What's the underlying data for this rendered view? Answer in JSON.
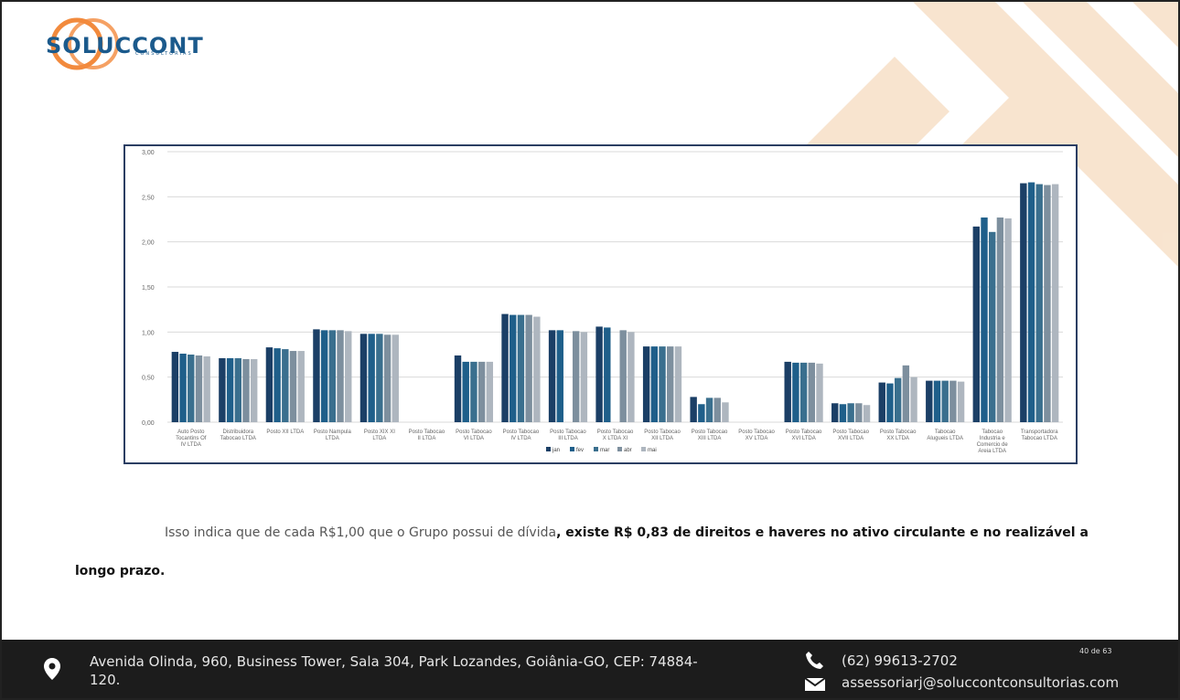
{
  "header": {
    "logo_text": "SOLUCCONT",
    "logo_sub": "CONSULTORIAS"
  },
  "colors": {
    "series": [
      "#1b3f66",
      "#1f5f8a",
      "#3a6f8e",
      "#7d8f9e",
      "#aeb6bf"
    ],
    "grid": "#d9d9d9",
    "frame": "#2b3e63",
    "footer_bg": "#1c1c1c",
    "deco": "#f6dcc0"
  },
  "chart_data": {
    "type": "bar",
    "yticks": [
      "0,00",
      "0,50",
      "1,00",
      "1,50",
      "2,00",
      "2,50",
      "3,00"
    ],
    "ylim": [
      0,
      3
    ],
    "legend_position": "bottom-center",
    "grid": true,
    "categories": [
      "Auto Posto Tocantins Of IV LTDA",
      "Distribuidora Tabocao LTDA",
      "Posto XII LTDA",
      "Posto Nampula LTDA",
      "Posto XIX XI LTDA",
      "Posto Tabocao II LTDA",
      "Posto Tabocao VI LTDA",
      "Posto Tabocao IV LTDA",
      "Posto Tabocao III LTDA",
      "Posto Tabocao X LTDA XI",
      "Posto Tabocao XII LTDA",
      "Posto Tabocao XIII LTDA",
      "Posto Tabocao XV LTDA",
      "Posto Tabocao XVI LTDA",
      "Posto Tabocao XVII LTDA",
      "Posto Tabocao XX LTDA",
      "Tabocao Alugueis LTDA",
      "Tabocao Industria e Comercio de Areia LTDA",
      "Transportadora Tabocao LTDA"
    ],
    "series": [
      {
        "name": "jan",
        "values": [
          0.78,
          0.71,
          0.83,
          1.03,
          0.98,
          0,
          0.74,
          1.2,
          1.02,
          1.06,
          0.84,
          0.28,
          0,
          0.67,
          0.21,
          0.44,
          0.46,
          2.17,
          2.65
        ]
      },
      {
        "name": "fev",
        "values": [
          0.76,
          0.71,
          0.82,
          1.02,
          0.98,
          0,
          0.67,
          1.19,
          1.02,
          1.05,
          0.84,
          0.2,
          0,
          0.66,
          0.2,
          0.43,
          0.46,
          2.27,
          2.66
        ]
      },
      {
        "name": "mar",
        "values": [
          0.75,
          0.71,
          0.81,
          1.02,
          0.98,
          0,
          0.67,
          1.19,
          0,
          0,
          0.84,
          0.27,
          0,
          0.66,
          0.21,
          0.49,
          0.46,
          2.11,
          2.64
        ]
      },
      {
        "name": "abr",
        "values": [
          0.74,
          0.7,
          0.79,
          1.02,
          0.97,
          0,
          0.67,
          1.19,
          1.01,
          1.02,
          0.84,
          0.27,
          0,
          0.66,
          0.21,
          0.63,
          0.46,
          2.27,
          2.63
        ]
      },
      {
        "name": "mai",
        "values": [
          0.73,
          0.7,
          0.79,
          1.01,
          0.97,
          0,
          0.67,
          1.17,
          1.0,
          1.0,
          0.84,
          0.22,
          0,
          0.65,
          0.19,
          0.5,
          0.45,
          2.26,
          2.64
        ]
      }
    ]
  },
  "body": {
    "para_lead": "Isso indica que de cada R$1,00 que o Grupo possui de dívida",
    "para_bold": ", existe R$ 0,83 de direitos e haveres no ativo circulante e no realizável a longo prazo."
  },
  "footer": {
    "address": "Avenida Olinda, 960, Business Tower, Sala 304, Park Lozandes, Goiânia-GO, CEP: 74884-120.",
    "phone": "(62) 99613-2702",
    "email": "assessoriarj@soluccontconsultorias.com",
    "page": "40 de 63"
  }
}
